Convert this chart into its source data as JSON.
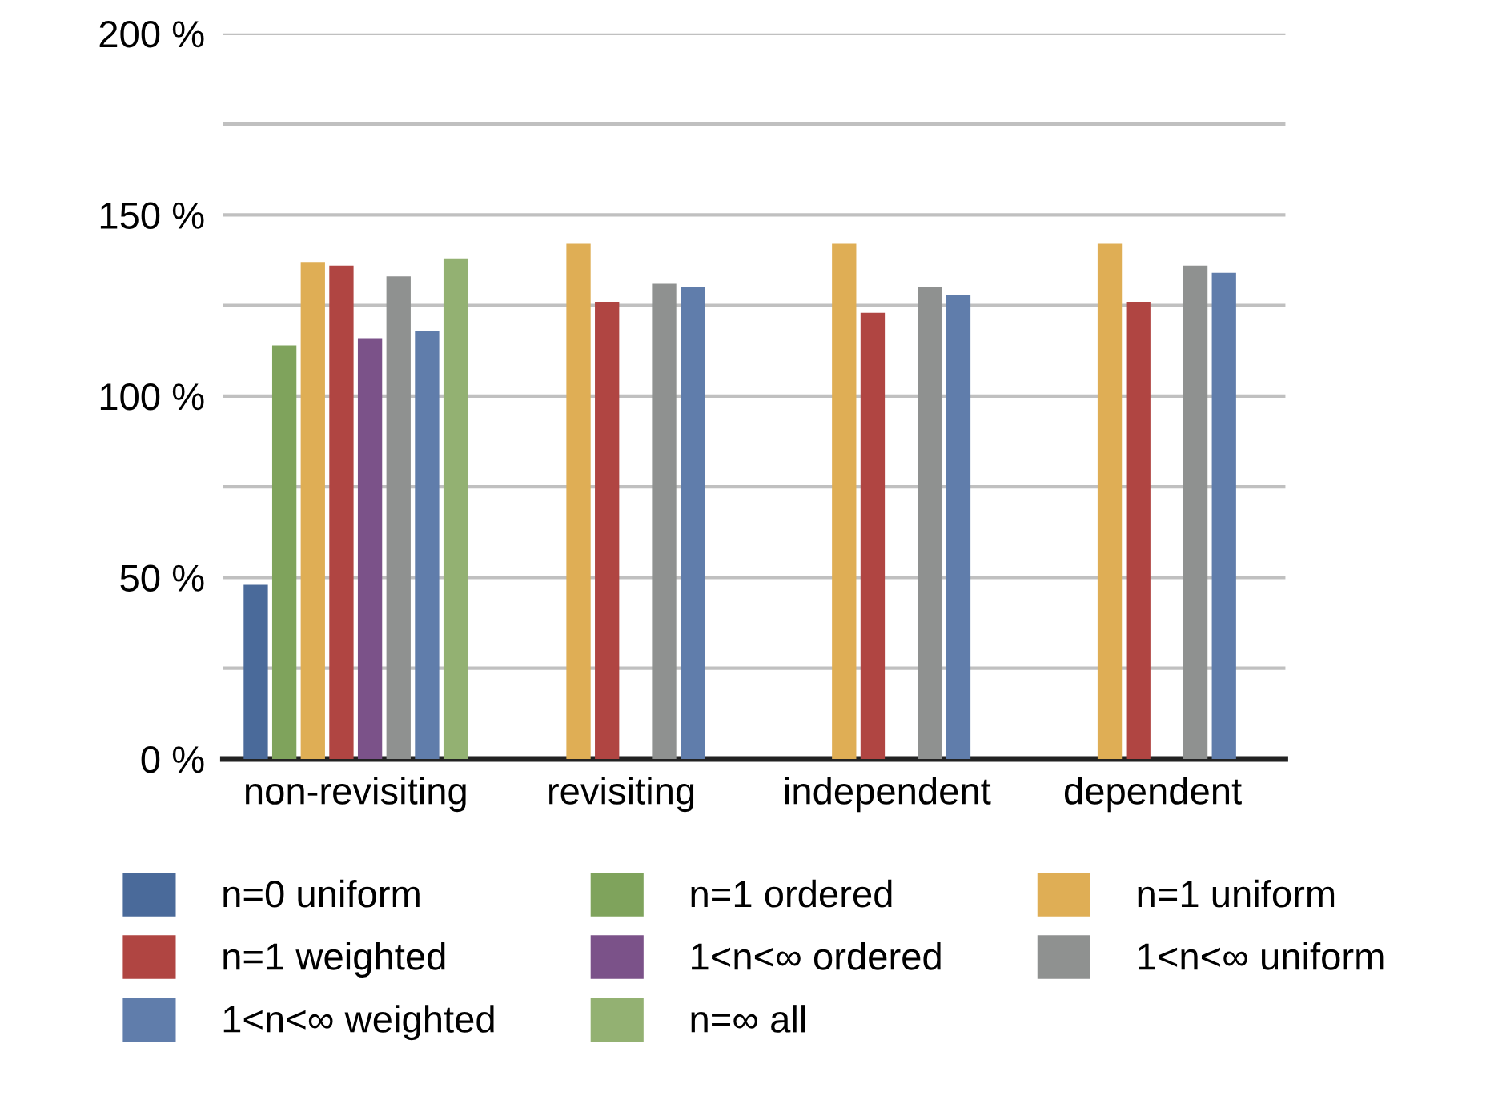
{
  "chart_data": {
    "type": "bar",
    "categories": [
      "non-revisiting",
      "revisiting",
      "independent",
      "dependent"
    ],
    "series": [
      {
        "name": "n=0 uniform",
        "color": "#4a6a9a",
        "values": [
          48,
          null,
          null,
          null
        ]
      },
      {
        "name": "n=1 ordered",
        "color": "#7fa35c",
        "values": [
          114,
          null,
          null,
          null
        ]
      },
      {
        "name": "n=1 uniform",
        "color": "#dfae55",
        "values": [
          137,
          142,
          142,
          142
        ]
      },
      {
        "name": "n=1 weighted",
        "color": "#b04542",
        "values": [
          136,
          126,
          123,
          126
        ]
      },
      {
        "name": "1<n<∞ ordered",
        "color": "#7b5289",
        "values": [
          116,
          null,
          null,
          null
        ]
      },
      {
        "name": "1<n<∞ uniform",
        "color": "#8f9190",
        "values": [
          133,
          131,
          130,
          136
        ]
      },
      {
        "name": "1<n<∞ weighted",
        "color": "#607dab",
        "values": [
          118,
          130,
          128,
          134
        ]
      },
      {
        "name": "n=∞ all",
        "color": "#93b172",
        "values": [
          138,
          null,
          null,
          null
        ]
      }
    ],
    "ylim": [
      0,
      200
    ],
    "yticks": [
      {
        "value": 0,
        "label": "0 %"
      },
      {
        "value": 25,
        "label": null
      },
      {
        "value": 50,
        "label": "50 %"
      },
      {
        "value": 75,
        "label": null
      },
      {
        "value": 100,
        "label": "100 %"
      },
      {
        "value": 125,
        "label": null
      },
      {
        "value": 150,
        "label": "150 %"
      },
      {
        "value": 175,
        "label": null
      },
      {
        "value": 200,
        "label": "200 %"
      }
    ],
    "grid": "y",
    "legend": "bottom"
  }
}
